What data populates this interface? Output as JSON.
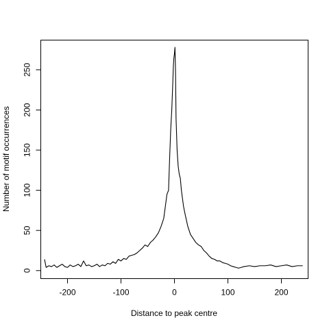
{
  "chart_data": {
    "type": "line",
    "title": "",
    "xlabel": "Distance to peak centre",
    "ylabel": "Number of motif occurrences",
    "xlim": [
      -250,
      250
    ],
    "ylim": [
      -10,
      287
    ],
    "grid": false,
    "legend": "none",
    "x_ticks": [
      -200,
      -100,
      0,
      100,
      200
    ],
    "x_tick_labels": [
      "-200",
      "-100",
      "0",
      "100",
      "200"
    ],
    "y_ticks": [
      0,
      50,
      100,
      150,
      200,
      250
    ],
    "y_tick_labels": [
      "0",
      "50",
      "100",
      "150",
      "200",
      "250"
    ],
    "series": [
      {
        "color": "#000000",
        "x": [
          -243,
          -240,
          -235,
          -230,
          -225,
          -220,
          -215,
          -210,
          -205,
          -200,
          -195,
          -190,
          -185,
          -180,
          -175,
          -170,
          -165,
          -160,
          -155,
          -150,
          -145,
          -140,
          -135,
          -130,
          -125,
          -120,
          -115,
          -110,
          -105,
          -100,
          -95,
          -90,
          -85,
          -80,
          -75,
          -70,
          -65,
          -60,
          -55,
          -50,
          -45,
          -40,
          -35,
          -30,
          -25,
          -20,
          -17,
          -14,
          -11,
          -9,
          -7,
          -5,
          -3,
          -2,
          -1,
          0,
          1,
          2,
          3,
          5,
          7,
          9,
          11,
          13,
          15,
          17,
          20,
          25,
          30,
          35,
          40,
          45,
          50,
          55,
          60,
          65,
          70,
          75,
          80,
          85,
          90,
          95,
          100,
          105,
          110,
          115,
          120,
          125,
          130,
          140,
          150,
          160,
          170,
          180,
          190,
          200,
          210,
          220,
          230,
          240
        ],
        "values": [
          14,
          4,
          6,
          5,
          7,
          4,
          6,
          8,
          5,
          4,
          7,
          5,
          6,
          8,
          5,
          12,
          6,
          7,
          5,
          6,
          8,
          5,
          7,
          6,
          9,
          8,
          11,
          9,
          14,
          12,
          15,
          14,
          18,
          19,
          20,
          22,
          25,
          28,
          32,
          30,
          35,
          38,
          42,
          47,
          55,
          65,
          80,
          95,
          100,
          140,
          175,
          200,
          235,
          255,
          265,
          270,
          278,
          250,
          190,
          150,
          130,
          120,
          115,
          100,
          90,
          80,
          70,
          55,
          45,
          40,
          35,
          32,
          30,
          25,
          22,
          18,
          15,
          14,
          12,
          12,
          10,
          9,
          8,
          6,
          5,
          4,
          3,
          4,
          5,
          6,
          5,
          6,
          6,
          7,
          5,
          6,
          7,
          5,
          6,
          6
        ]
      }
    ]
  }
}
